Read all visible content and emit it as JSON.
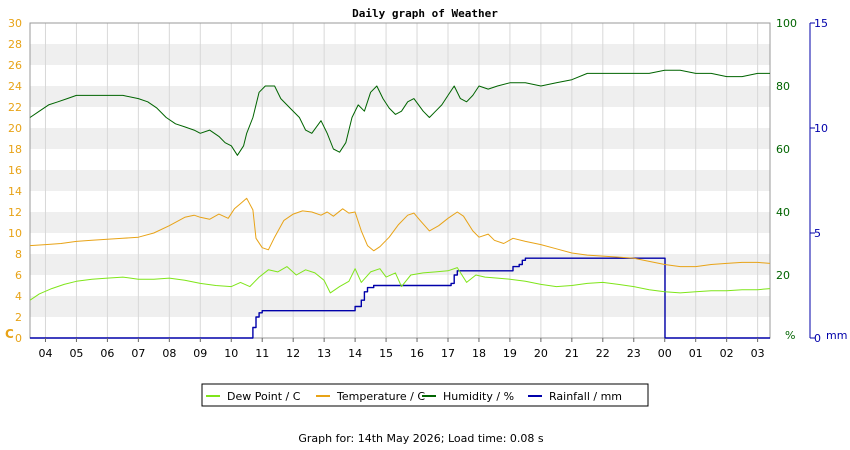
{
  "chart_data": {
    "type": "line",
    "title": "Daily graph of Weather",
    "x_ticks": [
      "04",
      "05",
      "06",
      "07",
      "08",
      "09",
      "10",
      "11",
      "12",
      "13",
      "14",
      "15",
      "16",
      "17",
      "18",
      "19",
      "20",
      "21",
      "22",
      "23",
      "00",
      "01",
      "02",
      "03"
    ],
    "x_range": [
      3.5,
      27.4
    ],
    "axes": {
      "left": {
        "unit": "C",
        "range": [
          0,
          30
        ],
        "ticks": [
          0,
          2,
          4,
          6,
          8,
          10,
          12,
          14,
          16,
          18,
          20,
          22,
          24,
          26,
          28,
          30
        ],
        "color": "#e8a317"
      },
      "humidity": {
        "unit": "%",
        "range": [
          0,
          100
        ],
        "ticks": [
          0,
          20,
          40,
          60,
          80,
          100
        ],
        "color": "#006400"
      },
      "rain": {
        "unit": "mm",
        "range": [
          0,
          15
        ],
        "ticks": [
          0,
          5,
          10,
          15
        ],
        "color": "#0000aa"
      }
    },
    "series": [
      {
        "name": "Dew Point / C",
        "axis": "left",
        "color": "#7fe51a",
        "points": [
          [
            3.5,
            3.6
          ],
          [
            3.8,
            4.2
          ],
          [
            4.2,
            4.7
          ],
          [
            4.6,
            5.1
          ],
          [
            5.0,
            5.4
          ],
          [
            5.5,
            5.6
          ],
          [
            6.0,
            5.7
          ],
          [
            6.5,
            5.8
          ],
          [
            7.0,
            5.6
          ],
          [
            7.5,
            5.6
          ],
          [
            8.0,
            5.7
          ],
          [
            8.5,
            5.5
          ],
          [
            9.0,
            5.2
          ],
          [
            9.5,
            5.0
          ],
          [
            10.0,
            4.9
          ],
          [
            10.3,
            5.3
          ],
          [
            10.6,
            4.9
          ],
          [
            10.9,
            5.8
          ],
          [
            11.2,
            6.5
          ],
          [
            11.5,
            6.3
          ],
          [
            11.8,
            6.8
          ],
          [
            12.1,
            6.0
          ],
          [
            12.4,
            6.5
          ],
          [
            12.7,
            6.2
          ],
          [
            13.0,
            5.5
          ],
          [
            13.2,
            4.3
          ],
          [
            13.5,
            4.9
          ],
          [
            13.8,
            5.4
          ],
          [
            14.0,
            6.6
          ],
          [
            14.2,
            5.3
          ],
          [
            14.5,
            6.3
          ],
          [
            14.8,
            6.6
          ],
          [
            15.0,
            5.8
          ],
          [
            15.3,
            6.2
          ],
          [
            15.5,
            4.9
          ],
          [
            15.8,
            6.0
          ],
          [
            16.2,
            6.2
          ],
          [
            16.6,
            6.3
          ],
          [
            17.0,
            6.4
          ],
          [
            17.3,
            6.7
          ],
          [
            17.6,
            5.3
          ],
          [
            17.9,
            6.0
          ],
          [
            18.2,
            5.8
          ],
          [
            18.6,
            5.7
          ],
          [
            19.0,
            5.6
          ],
          [
            19.5,
            5.4
          ],
          [
            20.0,
            5.1
          ],
          [
            20.5,
            4.9
          ],
          [
            21.0,
            5.0
          ],
          [
            21.5,
            5.2
          ],
          [
            22.0,
            5.3
          ],
          [
            22.5,
            5.1
          ],
          [
            23.0,
            4.9
          ],
          [
            23.5,
            4.6
          ],
          [
            24.0,
            4.4
          ],
          [
            24.5,
            4.3
          ],
          [
            25.0,
            4.4
          ],
          [
            25.5,
            4.5
          ],
          [
            26.0,
            4.5
          ],
          [
            26.5,
            4.6
          ],
          [
            27.0,
            4.6
          ],
          [
            27.4,
            4.7
          ]
        ]
      },
      {
        "name": "Temperature / C",
        "axis": "left",
        "color": "#e8a317",
        "points": [
          [
            3.5,
            8.8
          ],
          [
            4.0,
            8.9
          ],
          [
            4.5,
            9.0
          ],
          [
            5.0,
            9.2
          ],
          [
            5.5,
            9.3
          ],
          [
            6.0,
            9.4
          ],
          [
            6.5,
            9.5
          ],
          [
            7.0,
            9.6
          ],
          [
            7.5,
            10.0
          ],
          [
            8.0,
            10.7
          ],
          [
            8.5,
            11.5
          ],
          [
            8.8,
            11.7
          ],
          [
            9.0,
            11.5
          ],
          [
            9.3,
            11.3
          ],
          [
            9.6,
            11.8
          ],
          [
            9.9,
            11.4
          ],
          [
            10.1,
            12.3
          ],
          [
            10.3,
            12.8
          ],
          [
            10.5,
            13.3
          ],
          [
            10.7,
            12.2
          ],
          [
            10.8,
            9.5
          ],
          [
            11.0,
            8.6
          ],
          [
            11.2,
            8.4
          ],
          [
            11.4,
            9.6
          ],
          [
            11.7,
            11.2
          ],
          [
            12.0,
            11.8
          ],
          [
            12.3,
            12.1
          ],
          [
            12.6,
            12.0
          ],
          [
            12.9,
            11.7
          ],
          [
            13.1,
            12.0
          ],
          [
            13.3,
            11.6
          ],
          [
            13.6,
            12.3
          ],
          [
            13.8,
            11.9
          ],
          [
            14.0,
            12.0
          ],
          [
            14.2,
            10.2
          ],
          [
            14.4,
            8.8
          ],
          [
            14.6,
            8.3
          ],
          [
            14.8,
            8.7
          ],
          [
            15.1,
            9.6
          ],
          [
            15.4,
            10.8
          ],
          [
            15.7,
            11.7
          ],
          [
            15.9,
            11.9
          ],
          [
            16.1,
            11.2
          ],
          [
            16.4,
            10.2
          ],
          [
            16.7,
            10.7
          ],
          [
            17.0,
            11.4
          ],
          [
            17.3,
            12.0
          ],
          [
            17.5,
            11.6
          ],
          [
            17.8,
            10.2
          ],
          [
            18.0,
            9.6
          ],
          [
            18.3,
            9.9
          ],
          [
            18.5,
            9.3
          ],
          [
            18.8,
            9.0
          ],
          [
            19.1,
            9.5
          ],
          [
            19.5,
            9.2
          ],
          [
            20.0,
            8.9
          ],
          [
            20.5,
            8.5
          ],
          [
            21.0,
            8.1
          ],
          [
            21.5,
            7.9
          ],
          [
            22.0,
            7.8
          ],
          [
            22.5,
            7.7
          ],
          [
            23.0,
            7.6
          ],
          [
            23.5,
            7.3
          ],
          [
            24.0,
            7.0
          ],
          [
            24.5,
            6.8
          ],
          [
            25.0,
            6.8
          ],
          [
            25.5,
            7.0
          ],
          [
            26.0,
            7.1
          ],
          [
            26.5,
            7.2
          ],
          [
            27.0,
            7.2
          ],
          [
            27.4,
            7.1
          ]
        ]
      },
      {
        "name": "Humidity / %",
        "axis": "humidity",
        "color": "#006400",
        "points": [
          [
            3.5,
            70
          ],
          [
            3.8,
            72
          ],
          [
            4.1,
            74
          ],
          [
            4.4,
            75
          ],
          [
            4.7,
            76
          ],
          [
            5.0,
            77
          ],
          [
            5.5,
            77
          ],
          [
            6.0,
            77
          ],
          [
            6.5,
            77
          ],
          [
            7.0,
            76
          ],
          [
            7.3,
            75
          ],
          [
            7.6,
            73
          ],
          [
            7.9,
            70
          ],
          [
            8.2,
            68
          ],
          [
            8.5,
            67
          ],
          [
            8.8,
            66
          ],
          [
            9.0,
            65
          ],
          [
            9.3,
            66
          ],
          [
            9.6,
            64
          ],
          [
            9.8,
            62
          ],
          [
            10.0,
            61
          ],
          [
            10.2,
            58
          ],
          [
            10.4,
            61
          ],
          [
            10.5,
            65
          ],
          [
            10.7,
            70
          ],
          [
            10.9,
            78
          ],
          [
            11.1,
            80
          ],
          [
            11.4,
            80
          ],
          [
            11.6,
            76
          ],
          [
            11.9,
            73
          ],
          [
            12.2,
            70
          ],
          [
            12.4,
            66
          ],
          [
            12.6,
            65
          ],
          [
            12.9,
            69
          ],
          [
            13.1,
            65
          ],
          [
            13.3,
            60
          ],
          [
            13.5,
            59
          ],
          [
            13.7,
            62
          ],
          [
            13.9,
            70
          ],
          [
            14.1,
            74
          ],
          [
            14.3,
            72
          ],
          [
            14.5,
            78
          ],
          [
            14.7,
            80
          ],
          [
            14.9,
            76
          ],
          [
            15.1,
            73
          ],
          [
            15.3,
            71
          ],
          [
            15.5,
            72
          ],
          [
            15.7,
            75
          ],
          [
            15.9,
            76
          ],
          [
            16.2,
            72
          ],
          [
            16.4,
            70
          ],
          [
            16.6,
            72
          ],
          [
            16.8,
            74
          ],
          [
            17.0,
            77
          ],
          [
            17.2,
            80
          ],
          [
            17.4,
            76
          ],
          [
            17.6,
            75
          ],
          [
            17.8,
            77
          ],
          [
            18.0,
            80
          ],
          [
            18.3,
            79
          ],
          [
            18.6,
            80
          ],
          [
            19.0,
            81
          ],
          [
            19.5,
            81
          ],
          [
            20.0,
            80
          ],
          [
            20.5,
            81
          ],
          [
            21.0,
            82
          ],
          [
            21.5,
            84
          ],
          [
            22.0,
            84
          ],
          [
            22.5,
            84
          ],
          [
            23.0,
            84
          ],
          [
            23.5,
            84
          ],
          [
            24.0,
            85
          ],
          [
            24.5,
            85
          ],
          [
            25.0,
            84
          ],
          [
            25.5,
            84
          ],
          [
            26.0,
            83
          ],
          [
            26.5,
            83
          ],
          [
            27.0,
            84
          ],
          [
            27.4,
            84
          ]
        ]
      },
      {
        "name": "Rainfall / mm",
        "axis": "rain",
        "color": "#0000aa",
        "step": true,
        "points": [
          [
            3.5,
            0
          ],
          [
            10.5,
            0
          ],
          [
            10.7,
            0.5
          ],
          [
            10.8,
            1.0
          ],
          [
            10.9,
            1.2
          ],
          [
            11.0,
            1.3
          ],
          [
            13.8,
            1.3
          ],
          [
            14.0,
            1.5
          ],
          [
            14.2,
            1.8
          ],
          [
            14.3,
            2.2
          ],
          [
            14.4,
            2.4
          ],
          [
            14.6,
            2.5
          ],
          [
            16.8,
            2.5
          ],
          [
            17.1,
            2.6
          ],
          [
            17.2,
            3.0
          ],
          [
            17.3,
            3.2
          ],
          [
            19.0,
            3.2
          ],
          [
            19.1,
            3.4
          ],
          [
            19.3,
            3.5
          ],
          [
            19.4,
            3.7
          ],
          [
            19.5,
            3.8
          ],
          [
            24.0,
            3.8
          ],
          [
            24.01,
            0
          ],
          [
            27.4,
            0
          ]
        ]
      }
    ],
    "legend": {
      "placement": "bottom",
      "entries": [
        "Dew Point / C",
        "Temperature / C",
        "Humidity / %",
        "Rainfall / mm"
      ]
    },
    "grid": true
  },
  "footer": "Graph for: 14th May 2026; Load time: 0.08 s"
}
